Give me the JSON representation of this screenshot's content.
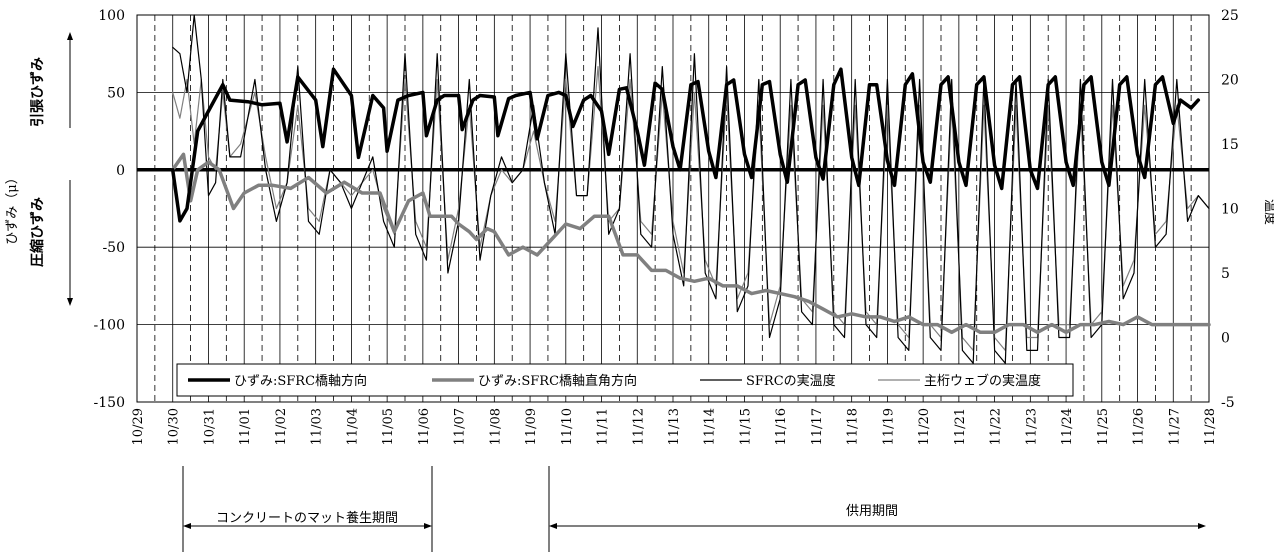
{
  "chart_data": {
    "type": "line",
    "title": "",
    "ylabel_left": "ひずみ（μ）",
    "ylabel_right": "温度",
    "tension_label": "引張ひずみ",
    "compression_label": "圧縮ひずみ",
    "y_left": {
      "min": -150,
      "max": 100,
      "ticks": [
        -150,
        -100,
        -50,
        0,
        50,
        100
      ]
    },
    "y_right": {
      "min": -5,
      "max": 25,
      "ticks": [
        -5,
        0,
        5,
        10,
        15,
        20,
        25
      ]
    },
    "x_ticks": [
      "10/29",
      "10/30",
      "10/31",
      "11/01",
      "11/02",
      "11/03",
      "11/04",
      "11/05",
      "11/06",
      "11/07",
      "11/08",
      "11/09",
      "11/10",
      "11/11",
      "11/12",
      "11/13",
      "11/14",
      "11/15",
      "11/16",
      "11/17",
      "11/18",
      "11/19",
      "11/20",
      "11/21",
      "11/22",
      "11/23",
      "11/24",
      "11/25",
      "11/26",
      "11/27",
      "11/28"
    ],
    "legend_position": "bottom",
    "periods": [
      {
        "label": "コンクリートのマット養生期間",
        "start_day": 1.4,
        "end_day": 8.0
      },
      {
        "label": "供用期間",
        "start_day": 11.0,
        "end_day": 30.0
      }
    ],
    "series": [
      {
        "name": "ひずみ:SFRC橋軸方向",
        "axis": "left",
        "color": "#000000",
        "width": 3.5,
        "day": [
          1.0,
          1.2,
          1.4,
          1.7,
          2.0,
          2.4,
          2.6,
          3.1,
          3.5,
          4.0,
          4.2,
          4.5,
          5.0,
          5.2,
          5.5,
          6.0,
          6.2,
          6.6,
          6.9,
          7.0,
          7.3,
          7.6,
          8.0,
          8.1,
          8.4,
          8.6,
          9.0,
          9.1,
          9.4,
          9.6,
          10.0,
          10.1,
          10.4,
          10.6,
          11.0,
          11.2,
          11.5,
          11.8,
          12.0,
          12.2,
          12.5,
          12.7,
          13.0,
          13.2,
          13.5,
          13.7,
          14.0,
          14.2,
          14.5,
          14.7,
          15.0,
          15.2,
          15.5,
          15.7,
          16.0,
          16.2,
          16.5,
          16.7,
          17.0,
          17.2,
          17.5,
          17.7,
          18.0,
          18.2,
          18.5,
          18.7,
          19.0,
          19.2,
          19.5,
          19.7,
          20.0,
          20.2,
          20.5,
          20.7,
          21.0,
          21.2,
          21.5,
          21.7,
          22.0,
          22.2,
          22.5,
          22.7,
          23.0,
          23.2,
          23.5,
          23.7,
          24.0,
          24.2,
          24.5,
          24.7,
          25.0,
          25.2,
          25.5,
          25.7,
          26.0,
          26.2,
          26.5,
          26.7,
          27.0,
          27.2,
          27.5,
          27.7,
          28.0,
          28.2,
          28.5,
          28.7,
          29.0,
          29.2,
          29.5,
          29.7,
          30.0
        ],
        "values": [
          0,
          -33,
          -25,
          25,
          38,
          55,
          45,
          44,
          42,
          43,
          18,
          60,
          45,
          15,
          65,
          48,
          8,
          48,
          40,
          12,
          45,
          48,
          50,
          22,
          45,
          48,
          48,
          26,
          45,
          48,
          47,
          22,
          46,
          48,
          50,
          20,
          48,
          50,
          48,
          28,
          45,
          48,
          38,
          10,
          52,
          53,
          25,
          3,
          56,
          52,
          15,
          0,
          55,
          57,
          12,
          -5,
          55,
          58,
          10,
          -5,
          55,
          57,
          10,
          -8,
          55,
          58,
          8,
          -6,
          55,
          65,
          8,
          -10,
          55,
          55,
          6,
          -10,
          55,
          62,
          5,
          -8,
          55,
          60,
          5,
          -10,
          55,
          60,
          3,
          -12,
          55,
          60,
          0,
          -12,
          55,
          60,
          5,
          -10,
          55,
          60,
          5,
          -10,
          55,
          60,
          10,
          -5,
          55,
          60,
          30,
          45,
          40,
          45
        ]
      },
      {
        "name": "ひずみ:SFRC橋軸直角方向",
        "axis": "left",
        "color": "#808080",
        "width": 3.5,
        "day": [
          1.0,
          1.3,
          1.5,
          1.7,
          2.0,
          2.3,
          2.7,
          3.0,
          3.4,
          3.8,
          4.3,
          4.8,
          5.3,
          5.8,
          6.3,
          6.8,
          7.2,
          7.6,
          8.0,
          8.2,
          8.5,
          8.8,
          9.0,
          9.3,
          9.5,
          9.8,
          10.0,
          10.4,
          10.8,
          11.2,
          11.6,
          12.0,
          12.4,
          12.8,
          13.2,
          13.6,
          14.0,
          14.4,
          14.8,
          15.2,
          15.6,
          16.0,
          16.4,
          16.8,
          17.2,
          17.6,
          18.0,
          18.4,
          18.8,
          19.2,
          19.6,
          20.0,
          20.4,
          20.8,
          21.2,
          21.6,
          22.0,
          22.4,
          22.8,
          23.2,
          23.6,
          24.0,
          24.4,
          24.8,
          25.2,
          25.6,
          26.0,
          26.4,
          26.8,
          27.2,
          27.6,
          28.0,
          28.4,
          28.8,
          29.2,
          29.6,
          30.0
        ],
        "values": [
          0,
          10,
          -20,
          0,
          5,
          0,
          -25,
          -15,
          -10,
          -10,
          -12,
          -5,
          -15,
          -8,
          -15,
          -15,
          -40,
          -20,
          -15,
          -30,
          -30,
          -30,
          -35,
          -40,
          -45,
          -38,
          -40,
          -55,
          -50,
          -55,
          -45,
          -35,
          -38,
          -30,
          -30,
          -55,
          -55,
          -65,
          -65,
          -70,
          -72,
          -70,
          -75,
          -75,
          -80,
          -78,
          -80,
          -82,
          -85,
          -90,
          -95,
          -93,
          -95,
          -95,
          -98,
          -95,
          -100,
          -100,
          -105,
          -100,
          -105,
          -105,
          -100,
          -100,
          -105,
          -100,
          -105,
          -100,
          -100,
          -98,
          -100,
          -95,
          -100,
          -100,
          -100,
          -100,
          -100
        ]
      },
      {
        "name": "SFRCの実温度",
        "axis": "right",
        "color": "#000000",
        "width": 1.2,
        "day": [
          1.0,
          1.2,
          1.4,
          1.6,
          1.8,
          2.0,
          2.2,
          2.4,
          2.6,
          2.9,
          3.3,
          3.6,
          3.9,
          4.2,
          4.5,
          4.8,
          5.1,
          5.4,
          5.7,
          6.0,
          6.3,
          6.6,
          6.9,
          7.2,
          7.5,
          7.8,
          8.1,
          8.4,
          8.7,
          9.0,
          9.3,
          9.6,
          9.9,
          10.2,
          10.5,
          10.8,
          11.1,
          11.4,
          11.7,
          12.0,
          12.3,
          12.6,
          12.9,
          13.2,
          13.5,
          13.8,
          14.1,
          14.4,
          14.7,
          15.0,
          15.3,
          15.6,
          15.9,
          16.2,
          16.5,
          16.8,
          17.1,
          17.4,
          17.7,
          18.0,
          18.3,
          18.6,
          18.9,
          19.2,
          19.5,
          19.8,
          20.1,
          20.4,
          20.7,
          21.0,
          21.3,
          21.6,
          21.9,
          22.2,
          22.5,
          22.8,
          23.1,
          23.4,
          23.7,
          24.0,
          24.3,
          24.6,
          24.9,
          25.2,
          25.5,
          25.8,
          26.1,
          26.4,
          26.7,
          27.0,
          27.3,
          27.6,
          27.9,
          28.2,
          28.5,
          28.8,
          29.1,
          29.4,
          29.7,
          30.0
        ],
        "values": [
          22.5,
          22,
          19,
          25,
          20,
          11,
          12,
          20,
          14,
          14,
          20,
          13,
          9,
          12,
          21,
          9,
          8,
          13,
          12,
          10,
          12,
          14,
          9,
          7,
          22,
          8,
          6,
          22,
          5,
          9,
          20,
          6,
          11,
          14,
          12,
          13,
          18,
          12,
          8,
          22,
          11,
          11,
          24,
          8,
          10,
          22,
          8,
          7,
          21,
          8,
          4,
          22,
          5,
          3,
          21,
          2,
          4,
          20,
          0,
          3,
          20,
          2,
          1,
          20,
          1,
          0,
          20,
          1,
          0,
          20,
          0,
          -1,
          20,
          0,
          -1,
          20,
          -1,
          -2,
          20,
          -1,
          -2,
          20,
          -1,
          -1,
          20,
          0,
          0,
          20,
          0,
          1,
          20,
          3,
          5,
          20,
          7,
          8,
          20,
          9,
          11,
          10
        ]
      },
      {
        "name": "主桁ウェブの実温度",
        "axis": "right",
        "color": "#808080",
        "width": 1.2,
        "day": [
          1.0,
          1.2,
          1.4,
          1.6,
          1.8,
          2.0,
          2.2,
          2.4,
          2.6,
          2.9,
          3.3,
          3.6,
          3.9,
          4.2,
          4.5,
          4.8,
          5.1,
          5.4,
          5.7,
          6.0,
          6.3,
          6.6,
          6.9,
          7.2,
          7.5,
          7.8,
          8.1,
          8.4,
          8.7,
          9.0,
          9.3,
          9.6,
          9.9,
          10.2,
          10.5,
          10.8,
          11.1,
          11.4,
          11.7,
          12.0,
          12.3,
          12.6,
          12.9,
          13.2,
          13.5,
          13.8,
          14.1,
          14.4,
          14.7,
          15.0,
          15.3,
          15.6,
          15.9,
          16.2,
          16.5,
          16.8,
          17.1,
          17.4,
          17.7,
          18.0,
          18.3,
          18.6,
          18.9,
          19.2,
          19.5,
          19.8,
          20.1,
          20.4,
          20.7,
          21.0,
          21.3,
          21.6,
          21.9,
          22.2,
          22.5,
          22.8,
          23.1,
          23.4,
          23.7,
          24.0,
          24.3,
          24.6,
          24.9,
          25.2,
          25.5,
          25.8,
          26.1,
          26.4,
          26.7,
          27.0,
          27.3,
          27.6,
          27.9,
          28.2,
          28.5,
          28.8,
          29.1,
          29.4,
          29.7,
          30.0
        ],
        "values": [
          19,
          17,
          20,
          15,
          20,
          14,
          13,
          19,
          14,
          15,
          19,
          14,
          10,
          12,
          18,
          10,
          9,
          13,
          12,
          11,
          12,
          13,
          10,
          8,
          20,
          9,
          7,
          20,
          6,
          10,
          18,
          7,
          11,
          13,
          12,
          13,
          16,
          12,
          9,
          20,
          11,
          11,
          21,
          9,
          10,
          20,
          9,
          8,
          19,
          9,
          5,
          19,
          6,
          4,
          19,
          3,
          5,
          18,
          1,
          4,
          18,
          3,
          2,
          18,
          2,
          1,
          18,
          2,
          1,
          18,
          1,
          0,
          18,
          1,
          0,
          18,
          0,
          -1,
          18,
          0,
          -1,
          18,
          0,
          0,
          18,
          1,
          1,
          18,
          1,
          2,
          18,
          4,
          6,
          18,
          8,
          9,
          18,
          10,
          11,
          10
        ]
      }
    ]
  }
}
